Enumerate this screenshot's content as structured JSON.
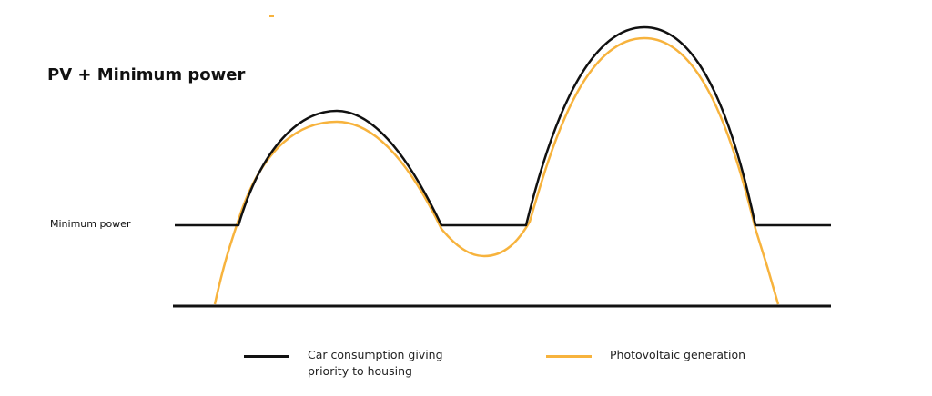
{
  "title": "PV + Minimum power",
  "minimum_label": "Minimum power",
  "legend": [
    {
      "label": "Car consumption giving\npriority to housing",
      "color": "#111111",
      "icon": "black-line"
    },
    {
      "label": "Photovoltaic generation",
      "color": "#f7b33d",
      "icon": "orange-line"
    }
  ],
  "colors": {
    "consumption": "#111111",
    "pv": "#f7b33d",
    "baseline": "#111111"
  }
}
